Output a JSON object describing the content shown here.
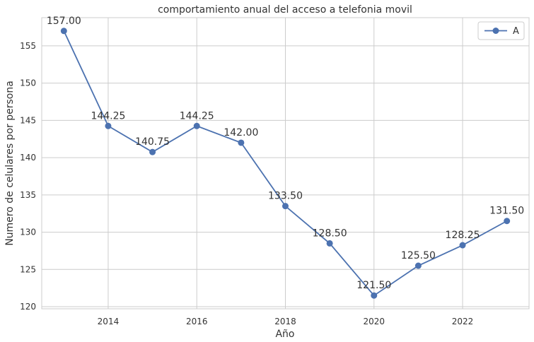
{
  "chart_data": {
    "type": "line",
    "title": "comportamiento anual del acceso a telefonia movil",
    "xlabel": "Año",
    "ylabel": "Numero de celulares por persona",
    "x": [
      2013,
      2014,
      2015,
      2016,
      2017,
      2018,
      2019,
      2020,
      2021,
      2022,
      2023
    ],
    "series": [
      {
        "name": "A",
        "values": [
          157.0,
          144.25,
          140.75,
          144.25,
          142.0,
          133.5,
          128.5,
          121.5,
          125.5,
          128.25,
          131.5
        ],
        "labels": [
          "157.00",
          "144.25",
          "140.75",
          "144.25",
          "142.00",
          "133.50",
          "128.50",
          "121.50",
          "125.50",
          "128.25",
          "131.50"
        ],
        "color": "#4c72b0"
      }
    ],
    "xlim": [
      2012.5,
      2023.5
    ],
    "ylim": [
      119.72,
      158.78
    ],
    "xticks": [
      2014,
      2016,
      2018,
      2020,
      2022
    ],
    "yticks": [
      120,
      125,
      130,
      135,
      140,
      145,
      150,
      155
    ],
    "grid": true,
    "legend": "top-right"
  }
}
